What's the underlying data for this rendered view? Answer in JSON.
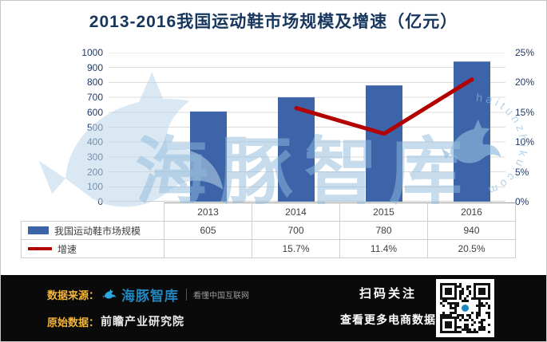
{
  "title": "2013-2016我国运动鞋市场规模及增速（亿元）",
  "colors": {
    "bar_blue": "#3D63A9",
    "line_red": "#B30000",
    "accent_gold": "#F3B63B",
    "title_navy": "#17365D",
    "logo_blue": "#1F86C0",
    "watermark_blue": "#8FBBDD",
    "footer_bg": "#0A0A0A"
  },
  "chart_data": {
    "type": "bar+line combo",
    "title": "2013-2016我国运动鞋市场规模及增速（亿元）",
    "categories": [
      "2013",
      "2014",
      "2015",
      "2016"
    ],
    "series": [
      {
        "name": "我国运动鞋市场规模",
        "type": "bar",
        "axis": "left",
        "unit": "亿元",
        "values": [
          605,
          700,
          780,
          940
        ],
        "color": "#3D63A9"
      },
      {
        "name": "增速",
        "type": "line",
        "axis": "right",
        "unit": "%",
        "values": [
          null,
          15.7,
          11.4,
          20.5
        ],
        "color": "#B30000"
      }
    ],
    "left_axis": {
      "min": 0,
      "max": 1000,
      "step": 100,
      "ticks": [
        "1000",
        "900",
        "800",
        "700",
        "600",
        "500",
        "400",
        "300",
        "200",
        "100",
        "0"
      ]
    },
    "right_axis": {
      "min": 0,
      "max": 25,
      "step": 5,
      "ticks": [
        "25%",
        "20%",
        "15%",
        "10%",
        "5%",
        "0%"
      ]
    },
    "grid": true,
    "legend_position": "data-table-below"
  },
  "data_table": {
    "header": [
      "2013",
      "2014",
      "2015",
      "2016"
    ],
    "rows": [
      {
        "swatch": "bar",
        "label": "我国运动鞋市场规模",
        "values": [
          "605",
          "700",
          "780",
          "940"
        ]
      },
      {
        "swatch": "line",
        "label": "增速",
        "values": [
          "",
          "15.7%",
          "11.4%",
          "20.5%"
        ]
      }
    ]
  },
  "watermark": {
    "text": "海豚智库",
    "url_text": "haitunzhiku.com"
  },
  "footer": {
    "source_label": "数据来源：",
    "logo_text": "海豚智库",
    "logo_tagline": "看懂中国互联网",
    "origin_label": "原始数据：",
    "origin_value": "前瞻产业研究院",
    "qr_title": "扫码关注",
    "qr_subtitle": "查看更多电商数据"
  }
}
